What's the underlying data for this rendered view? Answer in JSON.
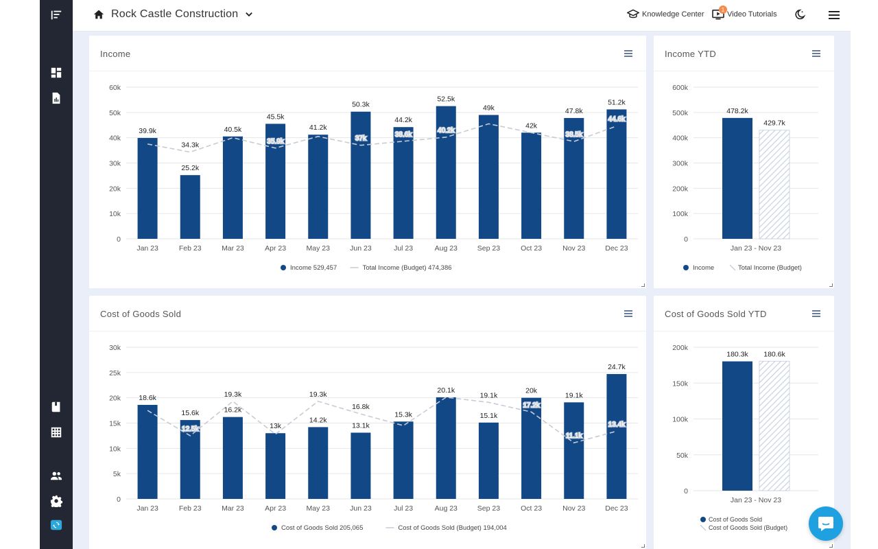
{
  "header": {
    "company_name": "Rock Castle Construction",
    "knowledge_center": "Knowledge Center",
    "video_tutorials": "Video Tutorials",
    "notification_count": "1"
  },
  "colors": {
    "bar": "#134887",
    "budget": "#c8cfd8",
    "sidebar": "#222733"
  },
  "cards": {
    "income": {
      "title": "Income"
    },
    "income_ytd": {
      "title": "Income YTD"
    },
    "cogs": {
      "title": "Cost of Goods Sold"
    },
    "cogs_ytd": {
      "title": "Cost of Goods Sold YTD"
    }
  },
  "chart_data": [
    {
      "id": "income",
      "type": "bar",
      "title": "Income",
      "categories": [
        "Jan 23",
        "Feb 23",
        "Mar 23",
        "Apr 23",
        "May 23",
        "Jun 23",
        "Jul 23",
        "Aug 23",
        "Sep 23",
        "Oct 23",
        "Nov 23",
        "Dec 23"
      ],
      "series": [
        {
          "name": "Income",
          "kind": "bar",
          "values": [
            39.9,
            25.2,
            40.5,
            45.5,
            41.2,
            50.3,
            44.2,
            52.5,
            49,
            42,
            47.8,
            51.2
          ],
          "labels": [
            "39.9k",
            "25.2k",
            "40.5k",
            "45.5k",
            "41.2k",
            "50.3k",
            "44.2k",
            "52.5k",
            "49k",
            "42k",
            "47.8k",
            "51.2k"
          ]
        },
        {
          "name": "Total Income (Budget)",
          "kind": "line",
          "values": [
            37.5,
            34.3,
            40,
            35.9,
            40.5,
            37,
            38.6,
            40.2,
            45.5,
            42,
            38.5,
            44.6
          ],
          "labels": [
            "",
            "34.3k",
            "",
            "35.9k",
            "",
            "37k",
            "38.6k",
            "40.2k",
            "",
            "",
            "38.5k",
            "44.6k"
          ]
        }
      ],
      "yticks": [
        "0",
        "10k",
        "20k",
        "30k",
        "40k",
        "50k",
        "60k"
      ],
      "ylim": [
        0,
        60
      ],
      "legend": [
        "Income 529,457",
        "Total Income (Budget) 474,386"
      ]
    },
    {
      "id": "income_ytd",
      "type": "bar",
      "title": "Income YTD",
      "categories": [
        "Jan 23 - Nov 23"
      ],
      "series": [
        {
          "name": "Income",
          "values": [
            478.2
          ],
          "labels": [
            "478.2k"
          ]
        },
        {
          "name": "Total Income (Budget)",
          "values": [
            429.7
          ],
          "labels": [
            "429.7k"
          ]
        }
      ],
      "yticks": [
        "0",
        "100k",
        "200k",
        "300k",
        "400k",
        "500k",
        "600k"
      ],
      "ylim": [
        0,
        600
      ],
      "legend": [
        "Income",
        "Total Income (Budget)"
      ]
    },
    {
      "id": "cogs",
      "type": "bar",
      "title": "Cost of Goods Sold",
      "categories": [
        "Jan 23",
        "Feb 23",
        "Mar 23",
        "Apr 23",
        "May 23",
        "Jun 23",
        "Jul 23",
        "Aug 23",
        "Sep 23",
        "Oct 23",
        "Nov 23",
        "Dec 23"
      ],
      "series": [
        {
          "name": "Cost of Goods Sold",
          "kind": "bar",
          "values": [
            18.6,
            15.6,
            16.2,
            13,
            14.2,
            13.1,
            15.3,
            20.1,
            15.1,
            20,
            19.1,
            24.7
          ],
          "labels": [
            "18.6k",
            "15.6k",
            "16.2k",
            "13k",
            "14.2k",
            "13.1k",
            "15.3k",
            "20.1k",
            "15.1k",
            "20k",
            "19.1k",
            "24.7k"
          ]
        },
        {
          "name": "Cost of Goods Sold (Budget)",
          "kind": "line",
          "values": [
            17.5,
            12.5,
            19.3,
            12.8,
            19.3,
            16.8,
            14.5,
            20.1,
            19.1,
            17.2,
            11.1,
            13.4
          ],
          "labels": [
            "",
            "12.5k",
            "19.3k",
            "",
            "19.3k",
            "16.8k",
            "",
            "",
            "19.1k",
            "17.2k",
            "11.1k",
            "13.4k"
          ]
        }
      ],
      "yticks": [
        "0",
        "5k",
        "10k",
        "15k",
        "20k",
        "25k",
        "30k"
      ],
      "ylim": [
        0,
        30
      ],
      "legend": [
        "Cost of Goods Sold 205,065",
        "Cost of Goods Sold (Budget) 194,004"
      ]
    },
    {
      "id": "cogs_ytd",
      "type": "bar",
      "title": "Cost of Goods Sold YTD",
      "categories": [
        "Jan 23 - Nov 23"
      ],
      "series": [
        {
          "name": "Cost of Goods Sold",
          "values": [
            180.3
          ],
          "labels": [
            "180.3k"
          ]
        },
        {
          "name": "Cost of Goods Sold (Budget)",
          "values": [
            180.6
          ],
          "labels": [
            "180.6k"
          ]
        }
      ],
      "yticks": [
        "0",
        "50k",
        "100k",
        "150k",
        "200k"
      ],
      "ylim": [
        0,
        200
      ],
      "legend": [
        "Cost of Goods Sold",
        "Cost of Goods Sold (Budget)"
      ]
    }
  ]
}
